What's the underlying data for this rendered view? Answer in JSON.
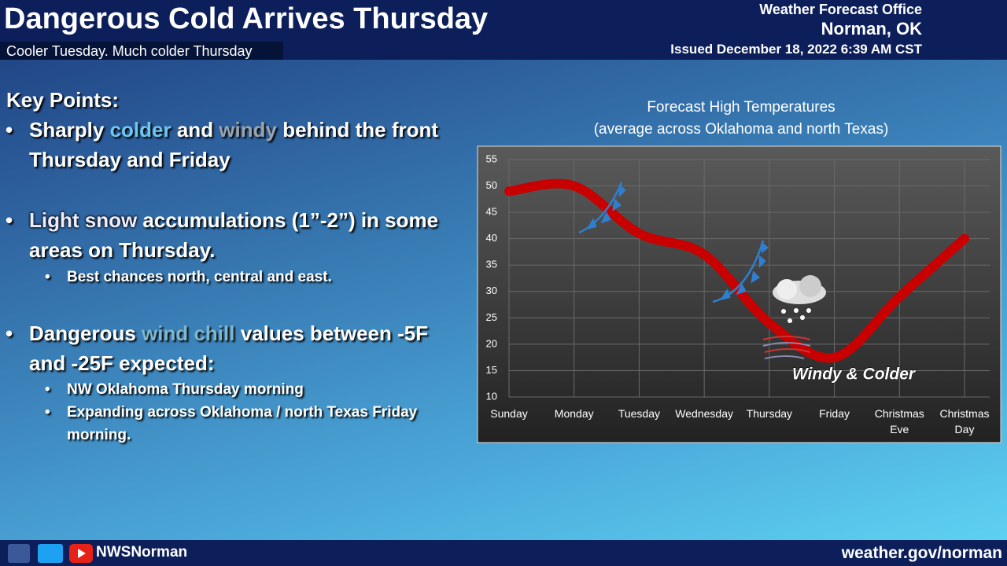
{
  "header": {
    "title": "Dangerous Cold Arrives Thursday",
    "subtitle": "Cooler Tuesday. Much colder Thursday",
    "office": "Weather Forecast Office",
    "location": "Norman, OK",
    "issued": "Issued December 18, 2022 6:39 AM CST"
  },
  "key_points": {
    "heading": "Key Points:",
    "items": [
      {
        "parts": [
          "Sharply ",
          "colder",
          " and ",
          "windy",
          " behind the front Thursday and Friday"
        ]
      },
      {
        "parts": [
          "Light snow",
          " accumulations (1”-2”) in some areas on Thursday."
        ],
        "subitems": [
          "Best chances north, central and east."
        ]
      },
      {
        "parts": [
          "Dangerous ",
          "wind chill",
          " values between -5F and -25F expected:"
        ],
        "subitems": [
          "NW Oklahoma Thursday morning",
          "Expanding across Oklahoma / north Texas Friday morning."
        ]
      }
    ]
  },
  "chart_data": {
    "type": "line",
    "title": "Forecast High Temperatures",
    "subtitle": "(average across Oklahoma and north Texas)",
    "categories": [
      "Sunday",
      "Monday",
      "Tuesday",
      "Wednesday",
      "Thursday",
      "Friday",
      "Christmas Eve",
      "Christmas Day"
    ],
    "values": [
      49,
      50,
      41,
      37,
      24,
      17.5,
      29,
      40
    ],
    "color": "#c80000",
    "ylim": [
      10,
      55
    ],
    "yticks": [
      10,
      15,
      20,
      25,
      30,
      35,
      40,
      45,
      50,
      55
    ],
    "grid": true,
    "annotation": "Windy & Colder"
  },
  "footer": {
    "social": "NWSNorman",
    "url": "weather.gov/norman"
  }
}
